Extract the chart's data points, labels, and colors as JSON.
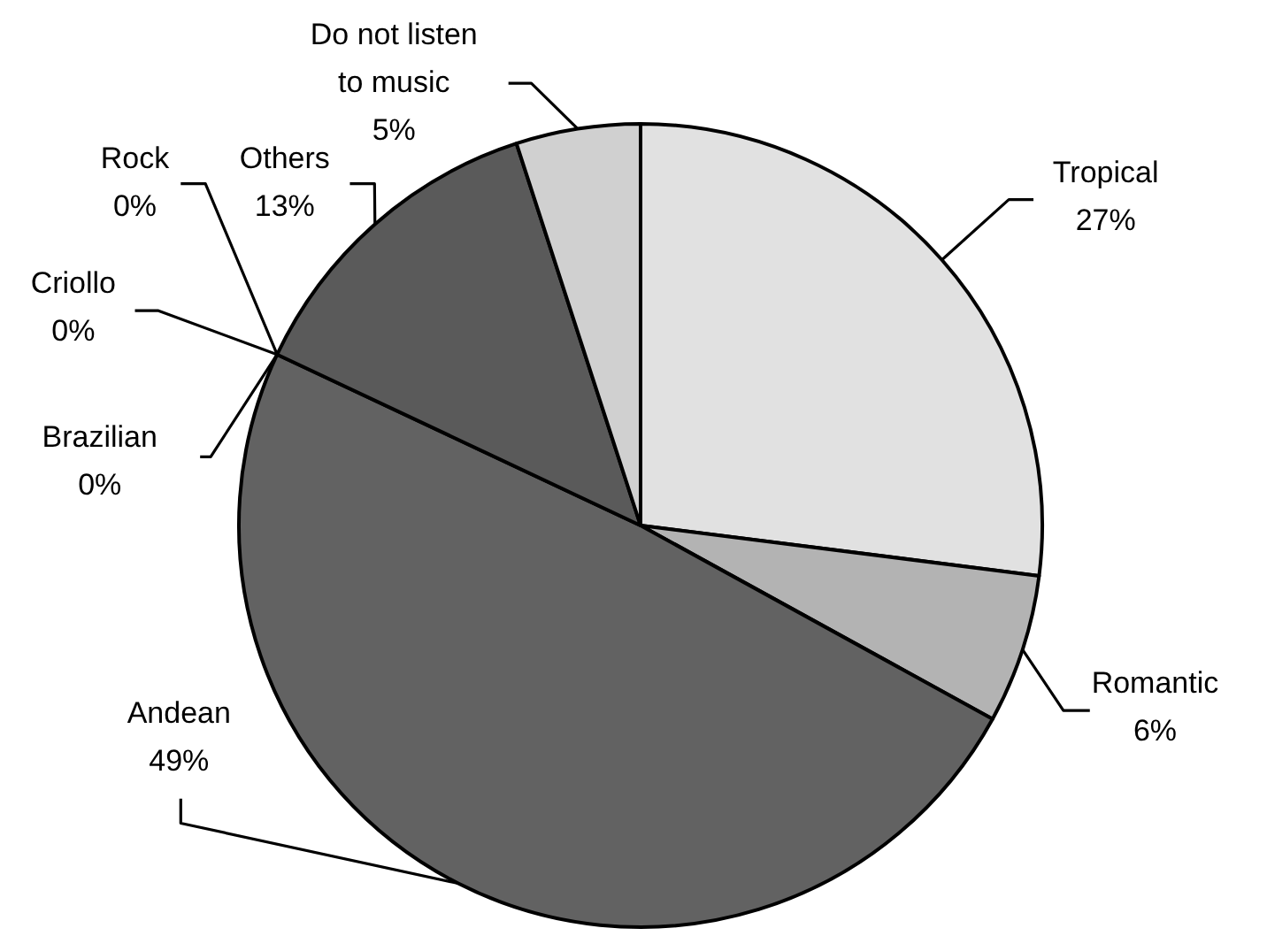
{
  "chart_data": {
    "type": "pie",
    "categories": [
      "Tropical",
      "Romantic",
      "Andean",
      "Brazilian",
      "Criollo",
      "Rock",
      "Others",
      "Do not listen to music"
    ],
    "values": [
      27,
      6,
      49,
      0,
      0,
      0,
      13,
      5
    ],
    "colors": [
      "#e1e1e1",
      "#b3b3b3",
      "#626262",
      "#8a8a8a",
      "#8a8a8a",
      "#8a8a8a",
      "#5a5a5a",
      "#d0d0d0"
    ],
    "value_labels": [
      "27%",
      "6%",
      "49%",
      "0%",
      "0%",
      "0%",
      "13%",
      "5%"
    ]
  }
}
